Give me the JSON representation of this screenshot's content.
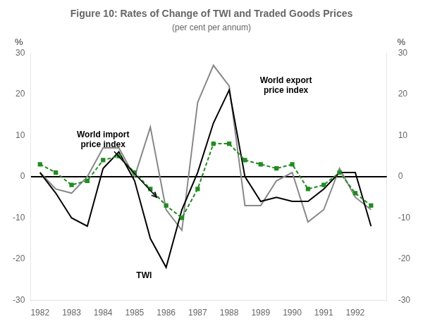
{
  "chart_data": {
    "type": "line",
    "title": "Figure 10: Rates of Change of TWI and Traded Goods Prices",
    "subtitle": "(per cent per annum)",
    "ylabel": "%",
    "y2label": "%",
    "x": [
      1982,
      1982.5,
      1983,
      1983.5,
      1984,
      1984.5,
      1985,
      1985.5,
      1986,
      1986.5,
      1987,
      1987.5,
      1988,
      1988.5,
      1989,
      1989.5,
      1990,
      1990.5,
      1991,
      1991.5,
      1992,
      1992.5
    ],
    "series": [
      {
        "color": "#888888",
        "line_style": "solid",
        "marker": "none",
        "values": [
          1,
          -3,
          -4,
          0,
          7,
          7,
          0,
          12,
          -8,
          -13,
          18,
          27,
          22,
          -7,
          -7,
          -1,
          1,
          -11,
          -8,
          2,
          -5,
          -8
        ]
      },
      {
        "color": "#000000",
        "line_style": "solid",
        "marker": "none",
        "values": [
          1,
          -4,
          -10,
          -12,
          2,
          6,
          -1,
          -15,
          -22,
          -8,
          1,
          13,
          21,
          0,
          -6,
          -5,
          -6,
          -6,
          -3,
          1,
          1,
          -12
        ]
      },
      {
        "color": "#228B22",
        "line_style": "dashed",
        "marker": "square",
        "values": [
          3,
          1,
          -2,
          -1,
          4,
          5,
          1,
          -3,
          -7,
          -10,
          -3,
          8,
          8,
          4,
          3,
          2,
          3,
          -3,
          -2,
          1,
          -4,
          -7
        ]
      }
    ],
    "annotations": [
      {
        "text": "World import\nprice index",
        "x": 1984.0,
        "y": 9,
        "arrow_to": [
          1985.7,
          -5
        ]
      },
      {
        "text": "World export\nprice index",
        "x": 1989.8,
        "y": 22
      },
      {
        "text": "TWI",
        "x": 1985.3,
        "y": -24
      }
    ],
    "xlim": [
      1981.7,
      1993.0
    ],
    "xticks": [
      1982,
      1983,
      1984,
      1985,
      1986,
      1987,
      1988,
      1989,
      1990,
      1991,
      1992
    ],
    "ylim": [
      -30,
      30
    ],
    "yticks": [
      -30,
      -20,
      -10,
      0,
      10,
      20,
      30
    ],
    "y2lim": [
      -30,
      30
    ],
    "y2ticks": [
      -30,
      -20,
      -10,
      0,
      10,
      20,
      30
    ],
    "grid": false
  }
}
